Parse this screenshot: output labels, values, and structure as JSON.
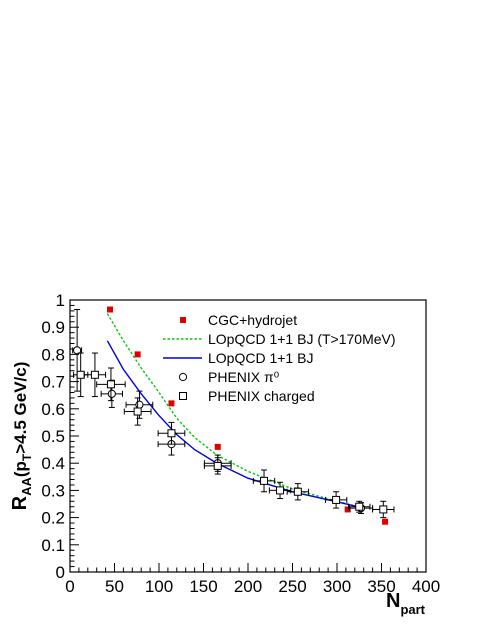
{
  "chart_data": {
    "type": "scatter",
    "title": "",
    "xlabel": {
      "main": "N",
      "sub": "part"
    },
    "ylabel": {
      "main": "R",
      "sub1": "AA",
      "mid": "(p",
      "sub2": "T",
      "rest": ">4.5 GeV/c)"
    },
    "xlim": [
      0,
      400
    ],
    "ylim": [
      0,
      1
    ],
    "x_ticks": [
      0,
      50,
      100,
      150,
      200,
      250,
      300,
      350,
      400
    ],
    "y_ticks": [
      0,
      0.1,
      0.2,
      0.3,
      0.4,
      0.5,
      0.6,
      0.7,
      0.8,
      0.9,
      1
    ],
    "y_tick_labels": [
      "0",
      "0.1",
      "0.2",
      "0.3",
      "0.4",
      "0.5",
      "0.6",
      "0.7",
      "0.8",
      "0.9",
      "1"
    ],
    "grid": false,
    "legend_position": "top-right",
    "series": [
      {
        "name": "CGC+hydrojet",
        "kind": "marker",
        "marker": "filled-square",
        "color": "#e00000",
        "points": [
          {
            "x": 45,
            "y": 0.965
          },
          {
            "x": 76,
            "y": 0.8
          },
          {
            "x": 114,
            "y": 0.62
          },
          {
            "x": 166,
            "y": 0.46
          },
          {
            "x": 255,
            "y": 0.3
          },
          {
            "x": 312,
            "y": 0.23
          },
          {
            "x": 354,
            "y": 0.185
          }
        ]
      },
      {
        "name": "LOpQCD 1+1 BJ (T>170MeV)",
        "kind": "line",
        "style": "dotted",
        "color": "#00cc00",
        "points": [
          {
            "x": 42,
            "y": 0.95
          },
          {
            "x": 60,
            "y": 0.85
          },
          {
            "x": 80,
            "y": 0.75
          },
          {
            "x": 100,
            "y": 0.66
          },
          {
            "x": 120,
            "y": 0.565
          },
          {
            "x": 140,
            "y": 0.495
          },
          {
            "x": 165,
            "y": 0.43
          },
          {
            "x": 200,
            "y": 0.37
          },
          {
            "x": 250,
            "y": 0.305
          },
          {
            "x": 300,
            "y": 0.26
          },
          {
            "x": 330,
            "y": 0.235
          }
        ]
      },
      {
        "name": "LOpQCD 1+1 BJ",
        "kind": "line",
        "style": "solid",
        "color": "#0000dd",
        "points": [
          {
            "x": 42,
            "y": 0.85
          },
          {
            "x": 60,
            "y": 0.745
          },
          {
            "x": 80,
            "y": 0.655
          },
          {
            "x": 100,
            "y": 0.575
          },
          {
            "x": 120,
            "y": 0.505
          },
          {
            "x": 140,
            "y": 0.45
          },
          {
            "x": 165,
            "y": 0.4
          },
          {
            "x": 200,
            "y": 0.345
          },
          {
            "x": 250,
            "y": 0.295
          },
          {
            "x": 300,
            "y": 0.258
          },
          {
            "x": 330,
            "y": 0.235
          }
        ]
      },
      {
        "name": "PHENIX π⁰",
        "kind": "marker",
        "marker": "open-circle",
        "color": "#000000",
        "points": [
          {
            "x": 8,
            "y": 0.815,
            "xerr": 5,
            "yerr": 0.15
          },
          {
            "x": 47,
            "y": 0.655,
            "xerr": 12,
            "yerr": 0.05
          },
          {
            "x": 78,
            "y": 0.615,
            "xerr": 15,
            "yerr": 0.05
          },
          {
            "x": 114,
            "y": 0.47,
            "xerr": 15,
            "yerr": 0.04
          },
          {
            "x": 166,
            "y": 0.4,
            "xerr": 15,
            "yerr": 0.03
          },
          {
            "x": 327,
            "y": 0.235,
            "xerr": 13,
            "yerr": 0.02
          }
        ]
      },
      {
        "name": "PHENIX charged",
        "kind": "marker",
        "marker": "open-square",
        "color": "#000000",
        "points": [
          {
            "x": 12,
            "y": 0.725,
            "xerr": 8,
            "yerr": 0.08
          },
          {
            "x": 28,
            "y": 0.725,
            "xerr": 12,
            "yerr": 0.08
          },
          {
            "x": 46,
            "y": 0.69,
            "xerr": 16,
            "yerr": 0.06
          },
          {
            "x": 76,
            "y": 0.59,
            "xerr": 15,
            "yerr": 0.05
          },
          {
            "x": 114,
            "y": 0.51,
            "xerr": 15,
            "yerr": 0.04
          },
          {
            "x": 166,
            "y": 0.39,
            "xerr": 15,
            "yerr": 0.03
          },
          {
            "x": 218,
            "y": 0.335,
            "xerr": 12,
            "yerr": 0.04
          },
          {
            "x": 236,
            "y": 0.3,
            "xerr": 12,
            "yerr": 0.03
          },
          {
            "x": 256,
            "y": 0.295,
            "xerr": 12,
            "yerr": 0.03
          },
          {
            "x": 299,
            "y": 0.265,
            "xerr": 12,
            "yerr": 0.03
          },
          {
            "x": 325,
            "y": 0.24,
            "xerr": 12,
            "yerr": 0.02
          },
          {
            "x": 352,
            "y": 0.23,
            "xerr": 12,
            "yerr": 0.03
          }
        ]
      }
    ]
  }
}
